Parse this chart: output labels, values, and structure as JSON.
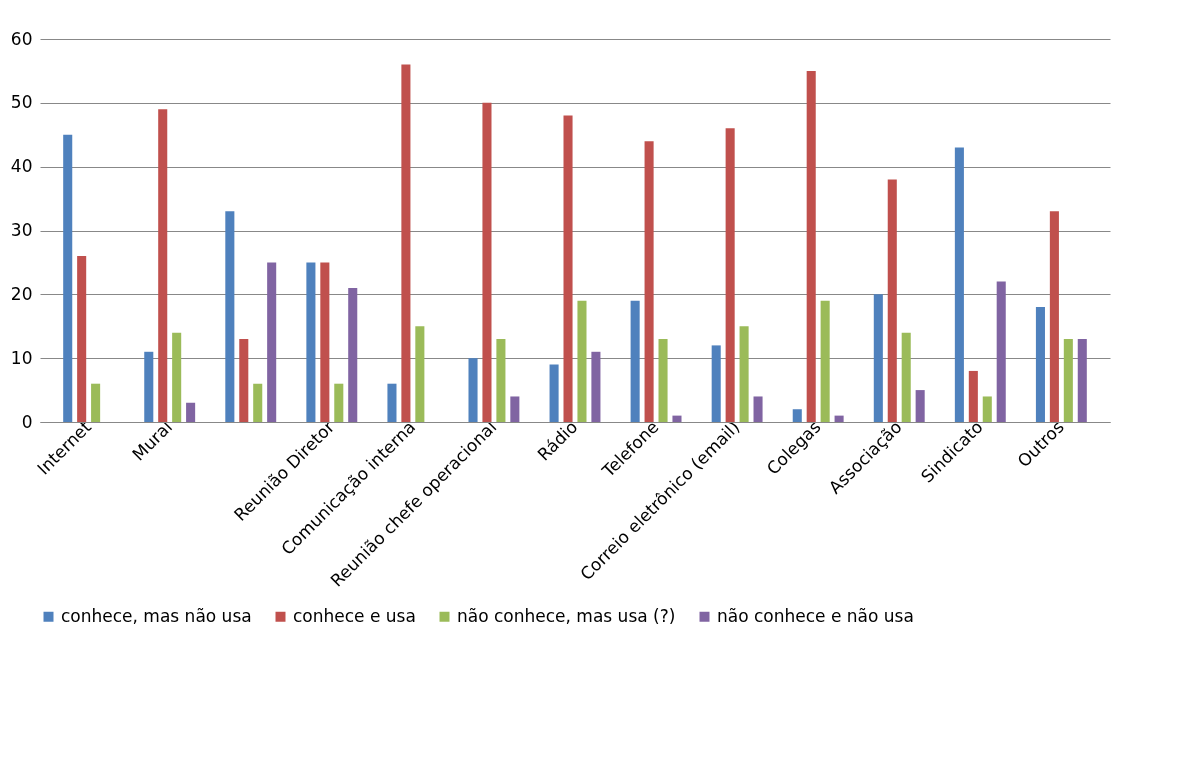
{
  "chart_data": {
    "type": "bar",
    "categories": [
      "Internet",
      "Mural",
      null,
      "Reunião Diretor",
      "Comunicação interna",
      "Reunião chefe operacional",
      "Rádio",
      "Telefone",
      "Correio eletrônico (email)",
      "Colegas",
      "Associação",
      "Sindicato",
      "Outros"
    ],
    "series": [
      {
        "name": "conhece, mas não usa",
        "color": "#4f81bd",
        "values": [
          45,
          11,
          33,
          25,
          6,
          10,
          9,
          19,
          12,
          2,
          20,
          43,
          18
        ]
      },
      {
        "name": "conhece e usa",
        "color": "#c0504d",
        "values": [
          26,
          49,
          13,
          25,
          56,
          50,
          48,
          44,
          46,
          55,
          38,
          8,
          33
        ]
      },
      {
        "name": "não conhece, mas usa (?)",
        "color": "#9bbb59",
        "values": [
          6,
          14,
          6,
          6,
          15,
          13,
          19,
          13,
          15,
          19,
          14,
          4,
          13
        ]
      },
      {
        "name": "não conhece e não usa",
        "color": "#8064a2",
        "values": [
          0,
          3,
          25,
          21,
          0,
          4,
          11,
          1,
          4,
          1,
          5,
          22,
          13
        ]
      }
    ],
    "ylim": [
      0,
      60
    ],
    "yticks": [
      0,
      10,
      20,
      30,
      40,
      50,
      60
    ],
    "grid": "y",
    "legend": "bottom"
  }
}
